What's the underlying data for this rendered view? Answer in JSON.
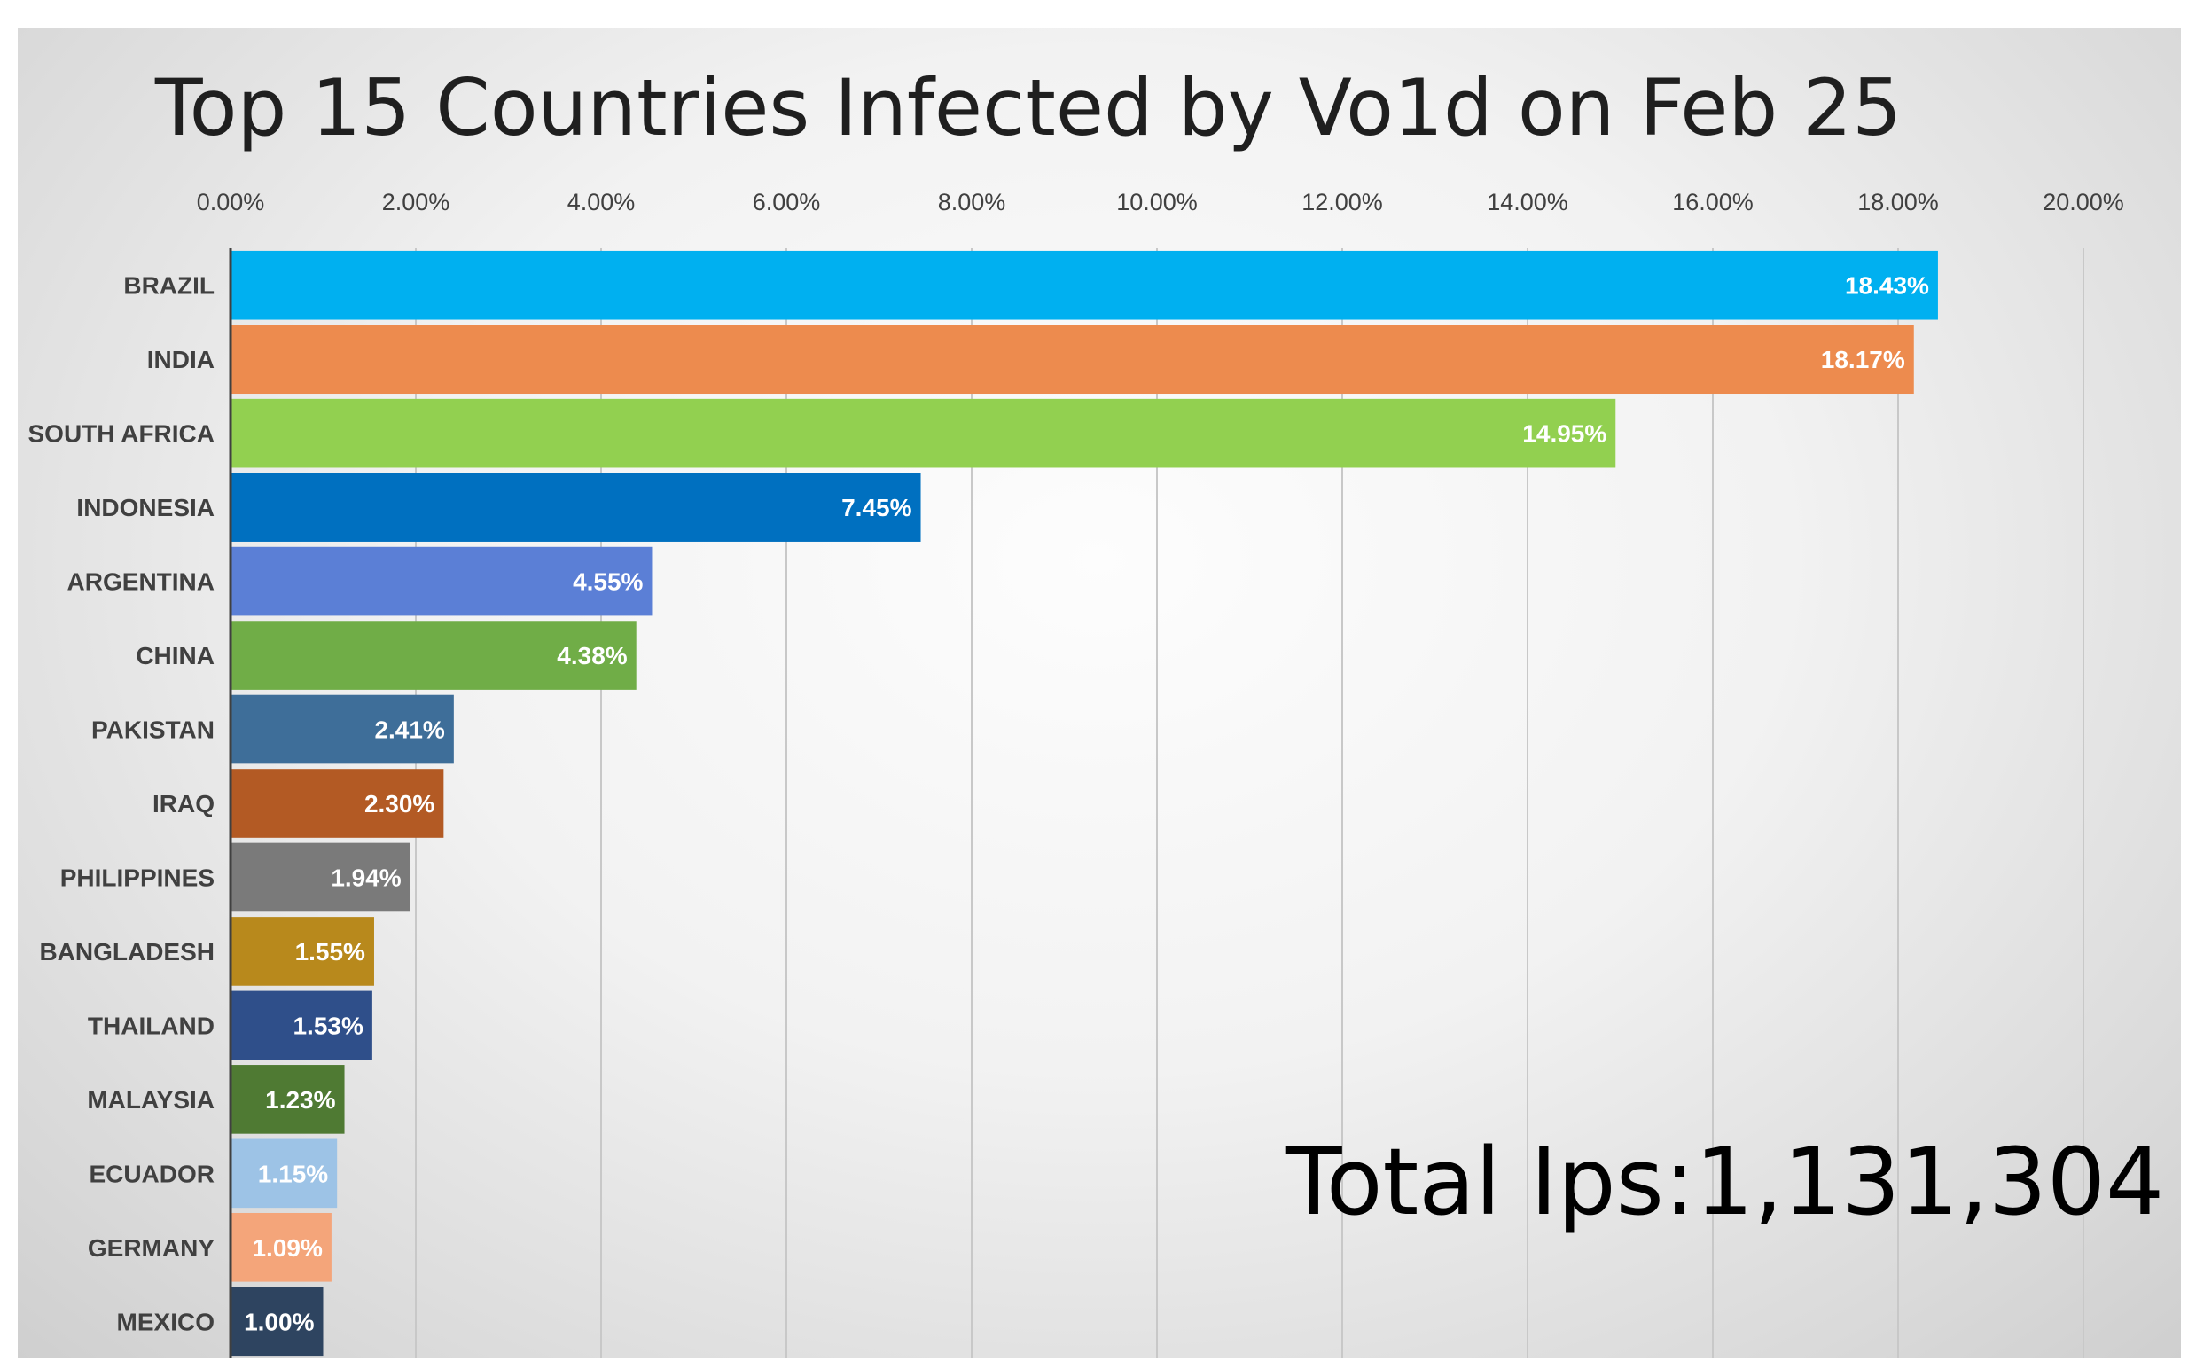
{
  "chart_data": {
    "type": "bar",
    "orientation": "horizontal",
    "title": "Top 15 Countries Infected by Vo1d on Feb 25",
    "annotation": "Total Ips:1,131,304",
    "categories": [
      "BRAZIL",
      "INDIA",
      "SOUTH AFRICA",
      "INDONESIA",
      "ARGENTINA",
      "CHINA",
      "PAKISTAN",
      "IRAQ",
      "PHILIPPINES",
      "BANGLADESH",
      "THAILAND",
      "MALAYSIA",
      "ECUADOR",
      "GERMANY",
      "MEXICO"
    ],
    "values": [
      18.43,
      18.17,
      14.95,
      7.45,
      4.55,
      4.38,
      2.41,
      2.3,
      1.94,
      1.55,
      1.53,
      1.23,
      1.15,
      1.09,
      1.0
    ],
    "data_labels": [
      "18.43%",
      "18.17%",
      "14.95%",
      "7.45%",
      "4.55%",
      "4.38%",
      "2.41%",
      "2.30%",
      "1.94%",
      "1.55%",
      "1.53%",
      "1.23%",
      "1.15%",
      "1.09%",
      "1.00%"
    ],
    "colors": [
      "#00b0f0",
      "#ed8b4e",
      "#92d050",
      "#0070c0",
      "#5b7fd6",
      "#70ad47",
      "#3e6e99",
      "#b35a24",
      "#7a7a7a",
      "#b8891c",
      "#2f4f8a",
      "#4f7a33",
      "#9dc3e6",
      "#f4a57a",
      "#2e4460"
    ],
    "x_ticks": [
      "0.00%",
      "2.00%",
      "4.00%",
      "6.00%",
      "8.00%",
      "10.00%",
      "12.00%",
      "14.00%",
      "16.00%",
      "18.00%",
      "20.00%"
    ],
    "xlim": [
      0,
      20
    ],
    "xlabel": "",
    "ylabel": "",
    "grid": "vertical",
    "axis_position": "top",
    "legend": "none"
  }
}
